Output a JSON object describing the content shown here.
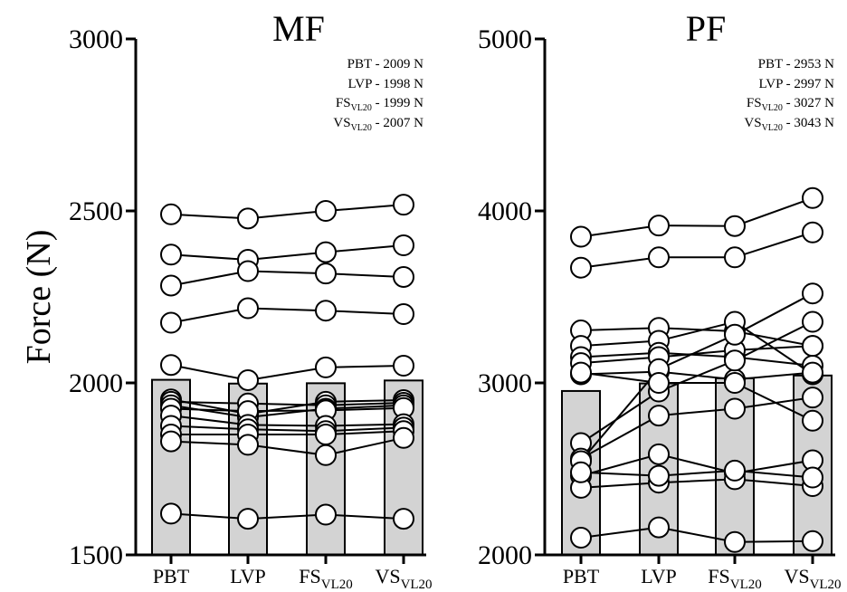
{
  "chart_data": [
    {
      "type": "bar",
      "title": "MF",
      "ylabel": "Force (N)",
      "ylim": [
        1500,
        3000
      ],
      "yticks": [
        "1500",
        "2000",
        "2500",
        "3000"
      ],
      "categories": [
        {
          "main": "PBT",
          "sub": ""
        },
        {
          "main": "LVP",
          "sub": ""
        },
        {
          "main": "FS",
          "sub": "VL20"
        },
        {
          "main": "VS",
          "sub": "VL20"
        }
      ],
      "values": [
        2009,
        1998,
        1999,
        2007
      ],
      "annotations": [
        {
          "main": "PBT",
          "sub": "",
          "value": " - 2009 N"
        },
        {
          "main": "LVP",
          "sub": "",
          "value": " - 1998 N"
        },
        {
          "main": "FS",
          "sub": "VL20",
          "value": " - 1999 N"
        },
        {
          "main": "VS",
          "sub": "VL20",
          "value": " - 2007 N"
        }
      ],
      "individuals": [
        [
          2490,
          2478,
          2500,
          2518
        ],
        [
          2373,
          2358,
          2380,
          2400
        ],
        [
          2283,
          2325,
          2318,
          2308
        ],
        [
          2175,
          2217,
          2210,
          2200
        ],
        [
          2052,
          2008,
          2045,
          2050
        ],
        [
          1952,
          1910,
          1945,
          1950
        ],
        [
          1945,
          1940,
          1935,
          1942
        ],
        [
          1935,
          1900,
          1925,
          1935
        ],
        [
          1925,
          1918,
          1920,
          1927
        ],
        [
          1905,
          1878,
          1875,
          1880
        ],
        [
          1875,
          1865,
          1860,
          1870
        ],
        [
          1850,
          1850,
          1850,
          1860
        ],
        [
          1830,
          1820,
          1790,
          1840
        ],
        [
          1620,
          1605,
          1617,
          1605
        ]
      ]
    },
    {
      "type": "bar",
      "title": "PF",
      "ylim": [
        2000,
        5000
      ],
      "yticks": [
        "2000",
        "3000",
        "4000",
        "5000"
      ],
      "categories": [
        {
          "main": "PBT",
          "sub": ""
        },
        {
          "main": "LVP",
          "sub": ""
        },
        {
          "main": "FS",
          "sub": "VL20"
        },
        {
          "main": "VS",
          "sub": "VL20"
        }
      ],
      "values": [
        2953,
        2997,
        3027,
        3043
      ],
      "annotations": [
        {
          "main": "PBT",
          "sub": "",
          "value": " - 2953 N"
        },
        {
          "main": "LVP",
          "sub": "",
          "value": " - 2997 N"
        },
        {
          "main": "FS",
          "sub": "VL20",
          "value": " - 3027 N"
        },
        {
          "main": "VS",
          "sub": "VL20",
          "value": " - 3043 N"
        }
      ],
      "individuals": [
        [
          3850,
          3915,
          3912,
          4075
        ],
        [
          3670,
          3730,
          3730,
          3875
        ],
        [
          3305,
          3320,
          3300,
          3215
        ],
        [
          3215,
          3245,
          3355,
          3050
        ],
        [
          3150,
          3175,
          3150,
          3100
        ],
        [
          3115,
          3150,
          3190,
          3215
        ],
        [
          3050,
          3065,
          3020,
          3060
        ],
        [
          2650,
          2950,
          3130,
          3355
        ],
        [
          2560,
          2810,
          2850,
          2915
        ],
        [
          2545,
          3080,
          3280,
          3520
        ],
        [
          2460,
          2585,
          2475,
          2550
        ],
        [
          2390,
          2420,
          2440,
          2400
        ],
        [
          2100,
          2160,
          2075,
          2080
        ],
        [
          2480,
          2460,
          2490,
          2450
        ],
        [
          3060,
          3000,
          3000,
          2780
        ]
      ]
    }
  ]
}
